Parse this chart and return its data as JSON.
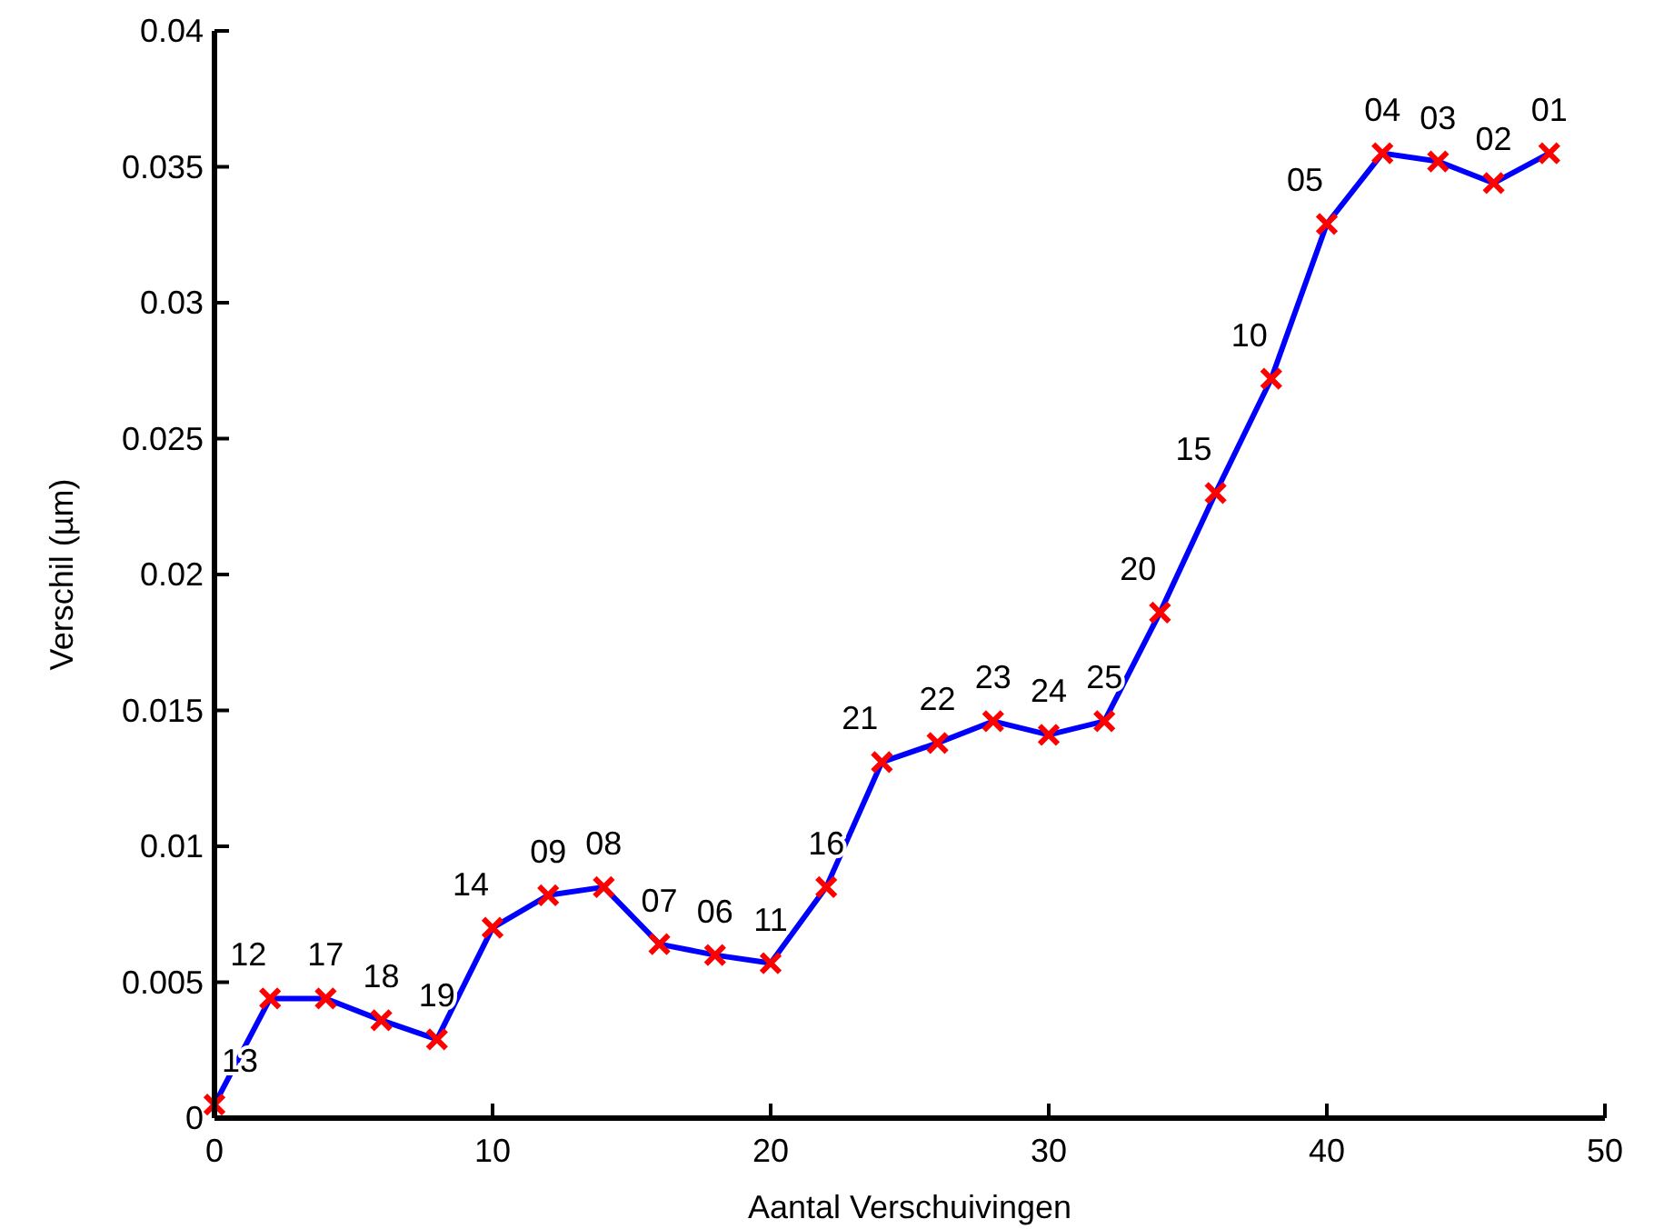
{
  "chart_data": {
    "type": "line",
    "xlabel": "Aantal Verschuivingen",
    "ylabel": "Verschil (µm)",
    "x": [
      0,
      2,
      4,
      6,
      8,
      10,
      12,
      14,
      16,
      18,
      20,
      22,
      24,
      26,
      28,
      30,
      32,
      34,
      36,
      38,
      40,
      42,
      44,
      46,
      48
    ],
    "series": [
      {
        "color": "#0000ff",
        "values": [
          0.0005,
          0.0044,
          0.0044,
          0.0036,
          0.0029,
          0.007,
          0.0082,
          0.0085,
          0.0064,
          0.006,
          0.0057,
          0.0085,
          0.0131,
          0.0138,
          0.0146,
          0.0141,
          0.0146,
          0.0186,
          0.023,
          0.0272,
          0.0329,
          0.0355,
          0.0352,
          0.0344,
          0.0355
        ]
      }
    ],
    "marker": "cross",
    "line_style": "solid",
    "grid": false,
    "xlim": [
      0,
      50
    ],
    "xticks": [
      0,
      10,
      20,
      30,
      40,
      50
    ],
    "ylim": [
      0,
      0.04
    ],
    "yticks": [
      0,
      0.005,
      0.01,
      0.015,
      0.02,
      0.025,
      0.03,
      0.035,
      0.04
    ],
    "annotations": [
      {
        "text": "13",
        "x": 0,
        "y": 0.0005
      },
      {
        "text": "12",
        "x": 2,
        "y": 0.0044
      },
      {
        "text": "17",
        "x": 4,
        "y": 0.0044
      },
      {
        "text": "18",
        "x": 6,
        "y": 0.0036
      },
      {
        "text": "19",
        "x": 8,
        "y": 0.0029
      },
      {
        "text": "14",
        "x": 10,
        "y": 0.007
      },
      {
        "text": "09",
        "x": 12,
        "y": 0.0082
      },
      {
        "text": "08",
        "x": 14,
        "y": 0.0085
      },
      {
        "text": "07",
        "x": 16,
        "y": 0.0064
      },
      {
        "text": "06",
        "x": 18,
        "y": 0.006
      },
      {
        "text": "11",
        "x": 20,
        "y": 0.0057
      },
      {
        "text": "16",
        "x": 22,
        "y": 0.0085
      },
      {
        "text": "21",
        "x": 24,
        "y": 0.0131
      },
      {
        "text": "22",
        "x": 26,
        "y": 0.0138
      },
      {
        "text": "23",
        "x": 28,
        "y": 0.0146
      },
      {
        "text": "24",
        "x": 30,
        "y": 0.0141
      },
      {
        "text": "25",
        "x": 32,
        "y": 0.0146
      },
      {
        "text": "20",
        "x": 34,
        "y": 0.0186
      },
      {
        "text": "15",
        "x": 36,
        "y": 0.023
      },
      {
        "text": "10",
        "x": 38,
        "y": 0.0272
      },
      {
        "text": "05",
        "x": 40,
        "y": 0.0329
      },
      {
        "text": "04",
        "x": 42,
        "y": 0.0355
      },
      {
        "text": "03",
        "x": 44,
        "y": 0.0352
      },
      {
        "text": "02",
        "x": 46,
        "y": 0.0344
      },
      {
        "text": "01",
        "x": 48,
        "y": 0.0355
      }
    ]
  }
}
